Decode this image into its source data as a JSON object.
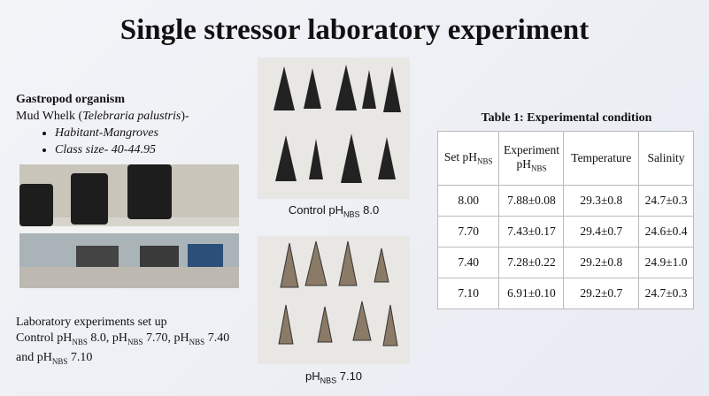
{
  "title": "Single stressor laboratory experiment",
  "organism": {
    "heading": "Gastropod organism",
    "name": [
      "Mud Whelk (",
      {
        "em": "Telebraria palustris"
      },
      ")-"
    ],
    "bullets": [
      "Habitant-Mangroves",
      "Class size- 40-44.95"
    ]
  },
  "setup": {
    "heading": "Laboratory experiments set up",
    "text": [
      "Control pH",
      {
        "sub": "NBS"
      },
      " 8.0, pH",
      {
        "sub": "NBS"
      },
      " 7.70, pH",
      {
        "sub": "NBS"
      },
      " 7.40 and pH",
      {
        "sub": "NBS"
      },
      " 7.10"
    ]
  },
  "photos": [
    {
      "caption": [
        "Control pH",
        {
          "sub": "NBS"
        },
        " 8.0"
      ]
    },
    {
      "caption": [
        "pH",
        {
          "sub": "NBS"
        },
        " 7.10"
      ]
    }
  ],
  "table": {
    "title": "Table 1: Experimental condition",
    "header": [
      [
        "Set pH",
        {
          "sub": "NBS"
        }
      ],
      [
        "Experiment pH",
        {
          "sub": "NBS"
        }
      ],
      [
        "Temperature"
      ],
      [
        "Salinity"
      ]
    ],
    "rows": [
      [
        "8.00",
        "7.88±0.08",
        "29.3±0.8",
        "24.7±0.3"
      ],
      [
        "7.70",
        "7.43±0.17",
        "29.4±0.7",
        "24.6±0.4"
      ],
      [
        "7.40",
        "7.28±0.22",
        "29.2±0.8",
        "24.9±1.0"
      ],
      [
        "7.10",
        "6.91±0.10",
        "29.2±0.7",
        "24.7±0.3"
      ]
    ]
  }
}
